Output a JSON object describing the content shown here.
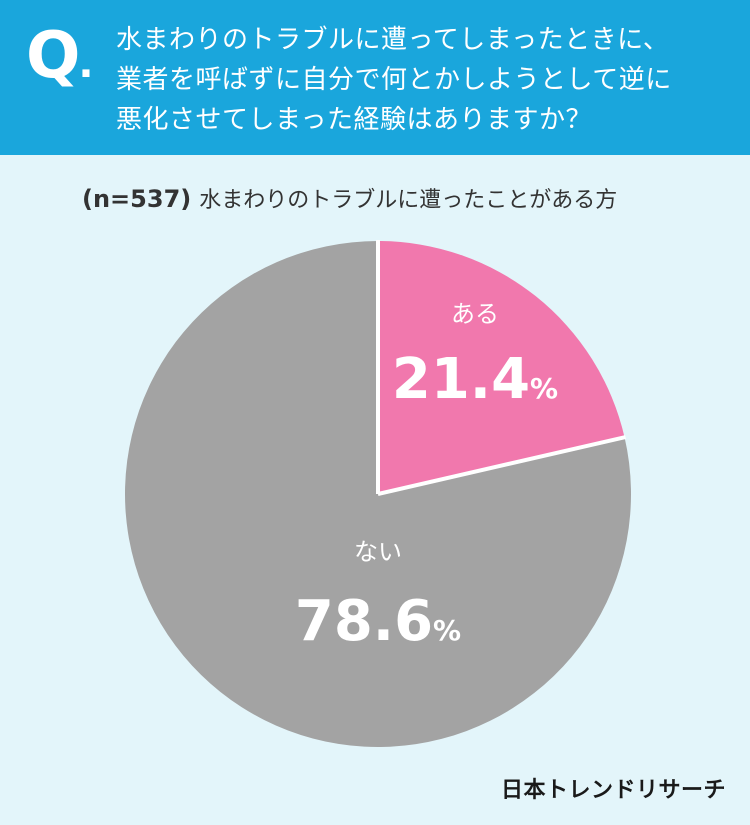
{
  "question": {
    "mark": "Q",
    "lines": [
      "水まわりのトラブルに遭ってしまったときに、",
      "業者を呼ばずに自分で何とかしようとして逆に",
      "悪化させてしまった経験はありますか？"
    ]
  },
  "subtitle": {
    "n": "(n=537)",
    "text": "水まわりのトラブルに遭ったことがある方"
  },
  "brand": "日本トレンドリサーチ",
  "colors": {
    "header": "#1aa6dc",
    "background": "#e3f5fa",
    "yes": "#f178ad",
    "no": "#a3a3a3"
  },
  "chart_data": {
    "type": "pie",
    "categories": [
      "ある",
      "ない"
    ],
    "values": [
      21.4,
      78.6
    ],
    "value_labels": [
      "21.4",
      "78.6"
    ],
    "unit": "%",
    "start": "12 o'clock, clockwise",
    "colors": [
      "#f178ad",
      "#a3a3a3"
    ]
  }
}
